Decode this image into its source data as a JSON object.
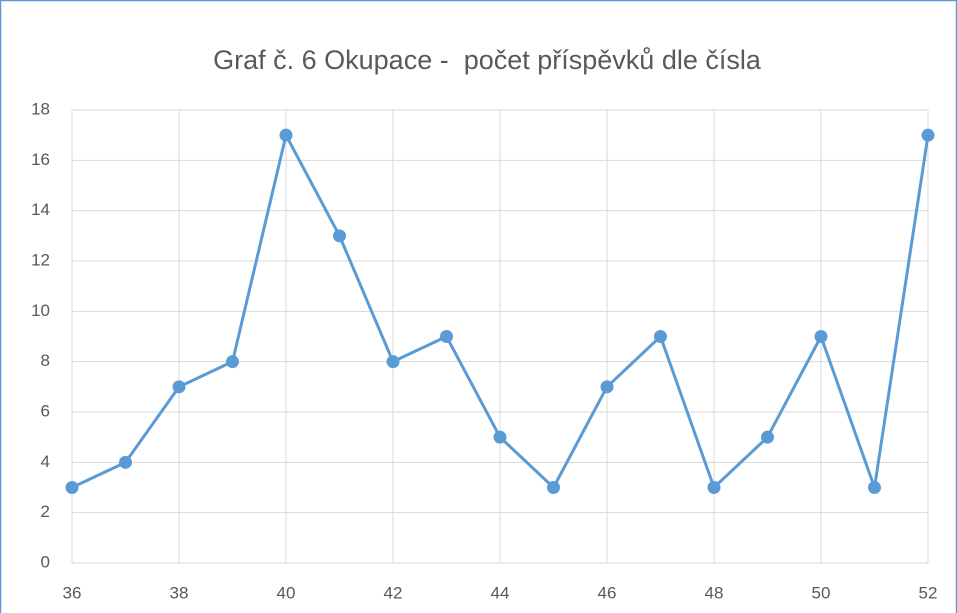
{
  "chart_data": {
    "type": "line",
    "title": "Graf č. 6 Okupace -  počet příspěvků dle čísla",
    "x": [
      36,
      37,
      38,
      39,
      40,
      41,
      42,
      43,
      44,
      45,
      46,
      47,
      48,
      49,
      50,
      51,
      52
    ],
    "series": [
      {
        "name": "počet příspěvků",
        "color": "#5b9bd5",
        "values": [
          3,
          4,
          7,
          8,
          17,
          13,
          8,
          9,
          5,
          3,
          7,
          9,
          3,
          5,
          9,
          3,
          17
        ]
      }
    ],
    "xlim": [
      36,
      52
    ],
    "xticks": [
      36,
      38,
      40,
      42,
      44,
      46,
      48,
      50,
      52
    ],
    "ylim": [
      0,
      18
    ],
    "yticks": [
      0,
      2,
      4,
      6,
      8,
      10,
      12,
      14,
      16,
      18
    ],
    "grid": true
  }
}
